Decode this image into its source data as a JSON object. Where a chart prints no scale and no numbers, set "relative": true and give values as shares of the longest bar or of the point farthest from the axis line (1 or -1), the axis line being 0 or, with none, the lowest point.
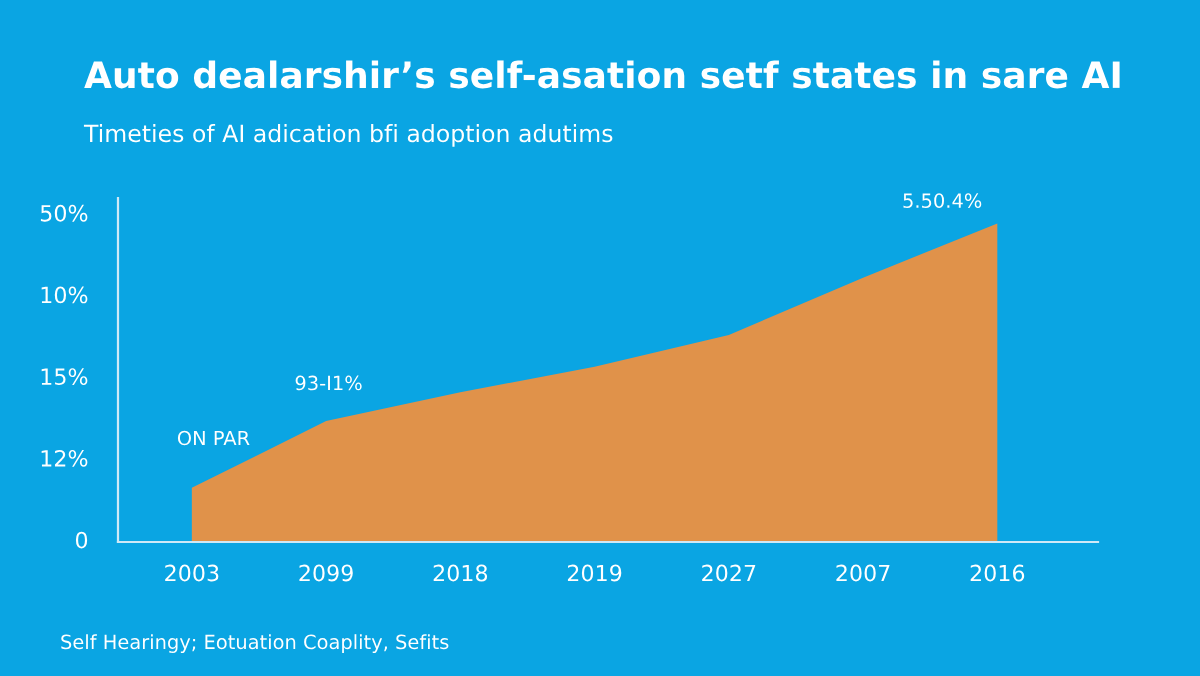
{
  "chart_data": {
    "type": "area",
    "title": "Auto dealarshir’s self-asation setf states in sare AI",
    "subtitle": "Timeties of AI adication bfi adoption adutims",
    "categories": [
      "2003",
      "2099",
      "2018",
      "2019",
      "2027",
      "2007",
      "2016"
    ],
    "relative": true,
    "series": [
      {
        "color": "#e0924a",
        "values": [
          0.17,
          0.38,
          0.47,
          0.55,
          0.65,
          0.83,
          1.0
        ]
      }
    ],
    "legend": false,
    "annotations": [
      "0",
      "12%",
      "15%",
      "10%",
      "50%",
      "ON PAR",
      "93-I1%",
      "5.50.4%",
      "Self Hearingy; Eotuation Coaplity, Sefits"
    ]
  }
}
